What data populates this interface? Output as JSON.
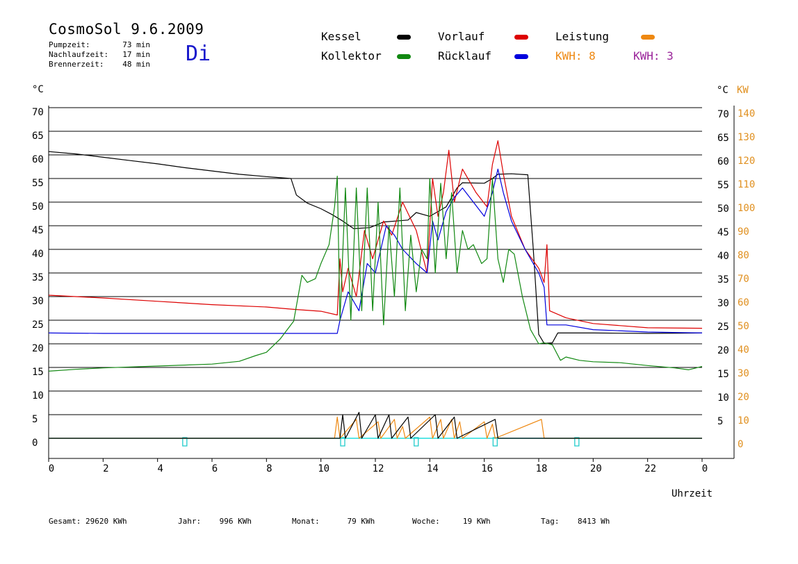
{
  "header": {
    "title": "CosmoSol 9.6.2009",
    "day": "Di",
    "stats": [
      {
        "label": "Pumpzeit:",
        "value": "73 min"
      },
      {
        "label": "Nachlaufzeit:",
        "value": "17 min"
      },
      {
        "label": "Brennerzeit:",
        "value": "48 min"
      }
    ]
  },
  "legend": {
    "kessel": {
      "label": "Kessel",
      "color": "#000000"
    },
    "vorlauf": {
      "label": "Vorlauf",
      "color": "#dd0000"
    },
    "leistung": {
      "label": "Leistung",
      "color": "#ee8811"
    },
    "kollektor": {
      "label": "Kollektor",
      "color": "#118811"
    },
    "ruecklauf": {
      "label": "Rücklauf",
      "color": "#0000dd"
    },
    "kwh_orange": {
      "label": "KWH:",
      "value": "8",
      "color": "#ee8811"
    },
    "kwh_purple": {
      "label": "KWH:",
      "value": "3",
      "color": "#992299"
    }
  },
  "footer": {
    "gesamt": {
      "label": "Gesamt:",
      "value": "29620 KWh"
    },
    "jahr": {
      "label": "Jahr:",
      "value": "996 KWh"
    },
    "monat": {
      "label": "Monat:",
      "value": "79 KWh"
    },
    "woche": {
      "label": "Woche:",
      "value": "19 KWh"
    },
    "tag": {
      "label": "Tag:",
      "value": "8413 Wh"
    }
  },
  "chart_data": {
    "type": "line",
    "xlabel": "Uhrzeit",
    "ylabel_left": "°C",
    "ylabel_right_temp": "°C",
    "ylabel_right_power": "KW",
    "x_ticks": [
      "0",
      "2",
      "4",
      "6",
      "8",
      "10",
      "12",
      "14",
      "16",
      "18",
      "20",
      "22",
      "0"
    ],
    "y_ticks": [
      0,
      5,
      10,
      15,
      20,
      25,
      30,
      35,
      40,
      45,
      50,
      55,
      60,
      65,
      70
    ],
    "y_right_temp_ticks": [
      5,
      10,
      15,
      20,
      25,
      30,
      35,
      40,
      45,
      50,
      55,
      60,
      65,
      70
    ],
    "y_right_power_ticks": [
      0,
      10,
      20,
      30,
      40,
      50,
      60,
      70,
      80,
      90,
      100,
      110,
      120,
      130,
      140
    ],
    "xlim": [
      0,
      24
    ],
    "ylim": [
      0,
      70
    ],
    "grid": true,
    "series": [
      {
        "name": "Kessel",
        "color": "#000000",
        "points": [
          [
            0,
            60.7
          ],
          [
            1,
            60.2
          ],
          [
            2,
            59.5
          ],
          [
            3,
            58.8
          ],
          [
            4,
            58.1
          ],
          [
            5,
            57.3
          ],
          [
            6,
            56.6
          ],
          [
            7,
            55.9
          ],
          [
            8,
            55.4
          ],
          [
            8.9,
            55.0
          ],
          [
            9.1,
            51.5
          ],
          [
            9.5,
            49.8
          ],
          [
            10,
            48.6
          ],
          [
            10.4,
            47.4
          ],
          [
            10.8,
            46.0
          ],
          [
            11.2,
            44.4
          ],
          [
            11.8,
            44.6
          ],
          [
            12.3,
            45.8
          ],
          [
            13.2,
            46.2
          ],
          [
            13.5,
            47.8
          ],
          [
            14,
            47.0
          ],
          [
            14.6,
            49.0
          ],
          [
            15,
            53.0
          ],
          [
            15.2,
            54.1
          ],
          [
            16,
            54.0
          ],
          [
            16.3,
            55.0
          ],
          [
            16.5,
            55.9
          ],
          [
            17,
            56.0
          ],
          [
            17.6,
            55.8
          ],
          [
            17.8,
            40
          ],
          [
            18.0,
            22
          ],
          [
            18.2,
            20.1
          ],
          [
            18.5,
            20.2
          ],
          [
            18.7,
            22.3
          ],
          [
            20,
            22.3
          ],
          [
            22,
            22.2
          ],
          [
            24,
            22.3
          ]
        ]
      },
      {
        "name": "Vorlauf",
        "color": "#dd0000",
        "points": [
          [
            0,
            30.3
          ],
          [
            2,
            29.7
          ],
          [
            4,
            29.0
          ],
          [
            6,
            28.3
          ],
          [
            8,
            27.8
          ],
          [
            9,
            27.3
          ],
          [
            10,
            26.9
          ],
          [
            10.6,
            26.1
          ],
          [
            10.7,
            38
          ],
          [
            10.8,
            31
          ],
          [
            11.0,
            36
          ],
          [
            11.3,
            30
          ],
          [
            11.6,
            44
          ],
          [
            11.9,
            38
          ],
          [
            12.3,
            46
          ],
          [
            12.6,
            43
          ],
          [
            13.0,
            50
          ],
          [
            13.5,
            44
          ],
          [
            13.9,
            35
          ],
          [
            14.1,
            55
          ],
          [
            14.3,
            47
          ],
          [
            14.5,
            52
          ],
          [
            14.7,
            61
          ],
          [
            14.9,
            50
          ],
          [
            15.2,
            57
          ],
          [
            15.7,
            52
          ],
          [
            16.1,
            49
          ],
          [
            16.3,
            58
          ],
          [
            16.5,
            63
          ],
          [
            16.7,
            56
          ],
          [
            17.0,
            47
          ],
          [
            17.5,
            40
          ],
          [
            18.0,
            36
          ],
          [
            18.2,
            33
          ],
          [
            18.3,
            41
          ],
          [
            18.4,
            27
          ],
          [
            19,
            25.5
          ],
          [
            20,
            24.3
          ],
          [
            22,
            23.4
          ],
          [
            24,
            23.3
          ]
        ]
      },
      {
        "name": "Rücklauf",
        "color": "#0000dd",
        "points": [
          [
            0,
            22.3
          ],
          [
            2,
            22.2
          ],
          [
            4,
            22.2
          ],
          [
            6,
            22.2
          ],
          [
            8,
            22.2
          ],
          [
            10,
            22.2
          ],
          [
            10.6,
            22.2
          ],
          [
            10.7,
            25
          ],
          [
            11.0,
            31
          ],
          [
            11.4,
            27
          ],
          [
            11.7,
            37
          ],
          [
            12.0,
            35
          ],
          [
            12.4,
            45
          ],
          [
            12.7,
            43
          ],
          [
            13.0,
            40
          ],
          [
            13.5,
            37
          ],
          [
            13.9,
            35
          ],
          [
            14.1,
            46
          ],
          [
            14.3,
            42
          ],
          [
            14.6,
            48
          ],
          [
            14.9,
            51
          ],
          [
            15.2,
            53
          ],
          [
            15.6,
            50
          ],
          [
            16.0,
            47
          ],
          [
            16.3,
            52
          ],
          [
            16.5,
            57
          ],
          [
            16.7,
            52
          ],
          [
            17.0,
            46
          ],
          [
            17.5,
            40
          ],
          [
            18.0,
            35
          ],
          [
            18.2,
            32
          ],
          [
            18.3,
            24
          ],
          [
            18.4,
            24
          ],
          [
            19,
            24
          ],
          [
            20,
            23.0
          ],
          [
            22,
            22.5
          ],
          [
            24,
            22.3
          ]
        ]
      },
      {
        "name": "Kollektor",
        "color": "#118811",
        "points": [
          [
            0,
            14.2
          ],
          [
            1,
            14.6
          ],
          [
            2,
            14.9
          ],
          [
            3,
            15.1
          ],
          [
            4,
            15.3
          ],
          [
            5,
            15.5
          ],
          [
            6,
            15.7
          ],
          [
            7,
            16.3
          ],
          [
            7.6,
            17.5
          ],
          [
            8,
            18.2
          ],
          [
            8.5,
            21
          ],
          [
            9,
            24.8
          ],
          [
            9.3,
            34.5
          ],
          [
            9.5,
            33
          ],
          [
            9.8,
            33.8
          ],
          [
            10,
            37
          ],
          [
            10.3,
            41
          ],
          [
            10.5,
            49
          ],
          [
            10.6,
            55.5
          ],
          [
            10.7,
            25
          ],
          [
            10.9,
            53
          ],
          [
            11.1,
            25
          ],
          [
            11.3,
            53
          ],
          [
            11.5,
            27
          ],
          [
            11.7,
            53
          ],
          [
            11.9,
            27
          ],
          [
            12.1,
            50
          ],
          [
            12.3,
            24
          ],
          [
            12.5,
            45
          ],
          [
            12.7,
            30
          ],
          [
            12.9,
            53
          ],
          [
            13.1,
            27
          ],
          [
            13.3,
            43
          ],
          [
            13.5,
            31
          ],
          [
            13.7,
            40
          ],
          [
            13.9,
            38
          ],
          [
            14.0,
            55
          ],
          [
            14.2,
            35
          ],
          [
            14.4,
            54
          ],
          [
            14.6,
            38
          ],
          [
            14.8,
            52
          ],
          [
            15.0,
            35
          ],
          [
            15.2,
            44
          ],
          [
            15.4,
            40
          ],
          [
            15.6,
            41
          ],
          [
            15.9,
            37
          ],
          [
            16.1,
            38
          ],
          [
            16.3,
            55
          ],
          [
            16.5,
            38
          ],
          [
            16.7,
            33
          ],
          [
            16.9,
            40
          ],
          [
            17.1,
            39
          ],
          [
            17.4,
            30
          ],
          [
            17.7,
            23
          ],
          [
            18.0,
            20.0
          ],
          [
            18.2,
            20.2
          ],
          [
            18.5,
            19.8
          ],
          [
            18.8,
            16.5
          ],
          [
            19,
            17.2
          ],
          [
            19.5,
            16.5
          ],
          [
            20,
            16.2
          ],
          [
            21,
            16.0
          ],
          [
            22,
            15.4
          ],
          [
            23,
            14.9
          ],
          [
            23.5,
            14.5
          ],
          [
            24,
            15.2
          ]
        ]
      },
      {
        "name": "Leistung",
        "color": "#ee8811",
        "axis": "right_power",
        "points": [
          [
            0,
            0
          ],
          [
            10.5,
            0
          ],
          [
            10.6,
            9
          ],
          [
            10.7,
            0
          ],
          [
            11.3,
            8
          ],
          [
            11.4,
            0
          ],
          [
            12.1,
            7
          ],
          [
            12.2,
            0
          ],
          [
            12.7,
            8
          ],
          [
            12.8,
            0
          ],
          [
            13.0,
            5
          ],
          [
            13.1,
            0
          ],
          [
            14.0,
            9
          ],
          [
            14.1,
            0
          ],
          [
            14.4,
            8
          ],
          [
            14.5,
            0
          ],
          [
            14.8,
            8
          ],
          [
            14.9,
            0
          ],
          [
            15.1,
            7
          ],
          [
            15.2,
            0
          ],
          [
            16.0,
            7
          ],
          [
            16.1,
            0
          ],
          [
            16.3,
            6
          ],
          [
            16.4,
            0
          ],
          [
            18.1,
            8
          ],
          [
            18.2,
            0
          ],
          [
            24,
            0
          ]
        ]
      },
      {
        "name": "Kessel (Leistung)",
        "color": "#000000",
        "axis": "right_power",
        "points": [
          [
            0,
            0
          ],
          [
            10.7,
            0
          ],
          [
            10.8,
            10
          ],
          [
            10.9,
            0
          ],
          [
            11.4,
            11
          ],
          [
            11.5,
            0
          ],
          [
            12.0,
            10
          ],
          [
            12.1,
            0
          ],
          [
            12.5,
            10
          ],
          [
            12.6,
            0
          ],
          [
            13.2,
            9
          ],
          [
            13.3,
            0
          ],
          [
            14.2,
            10
          ],
          [
            14.3,
            0
          ],
          [
            14.9,
            9
          ],
          [
            15.0,
            0
          ],
          [
            16.4,
            8
          ],
          [
            16.5,
            0
          ],
          [
            24,
            0
          ]
        ]
      }
    ]
  }
}
